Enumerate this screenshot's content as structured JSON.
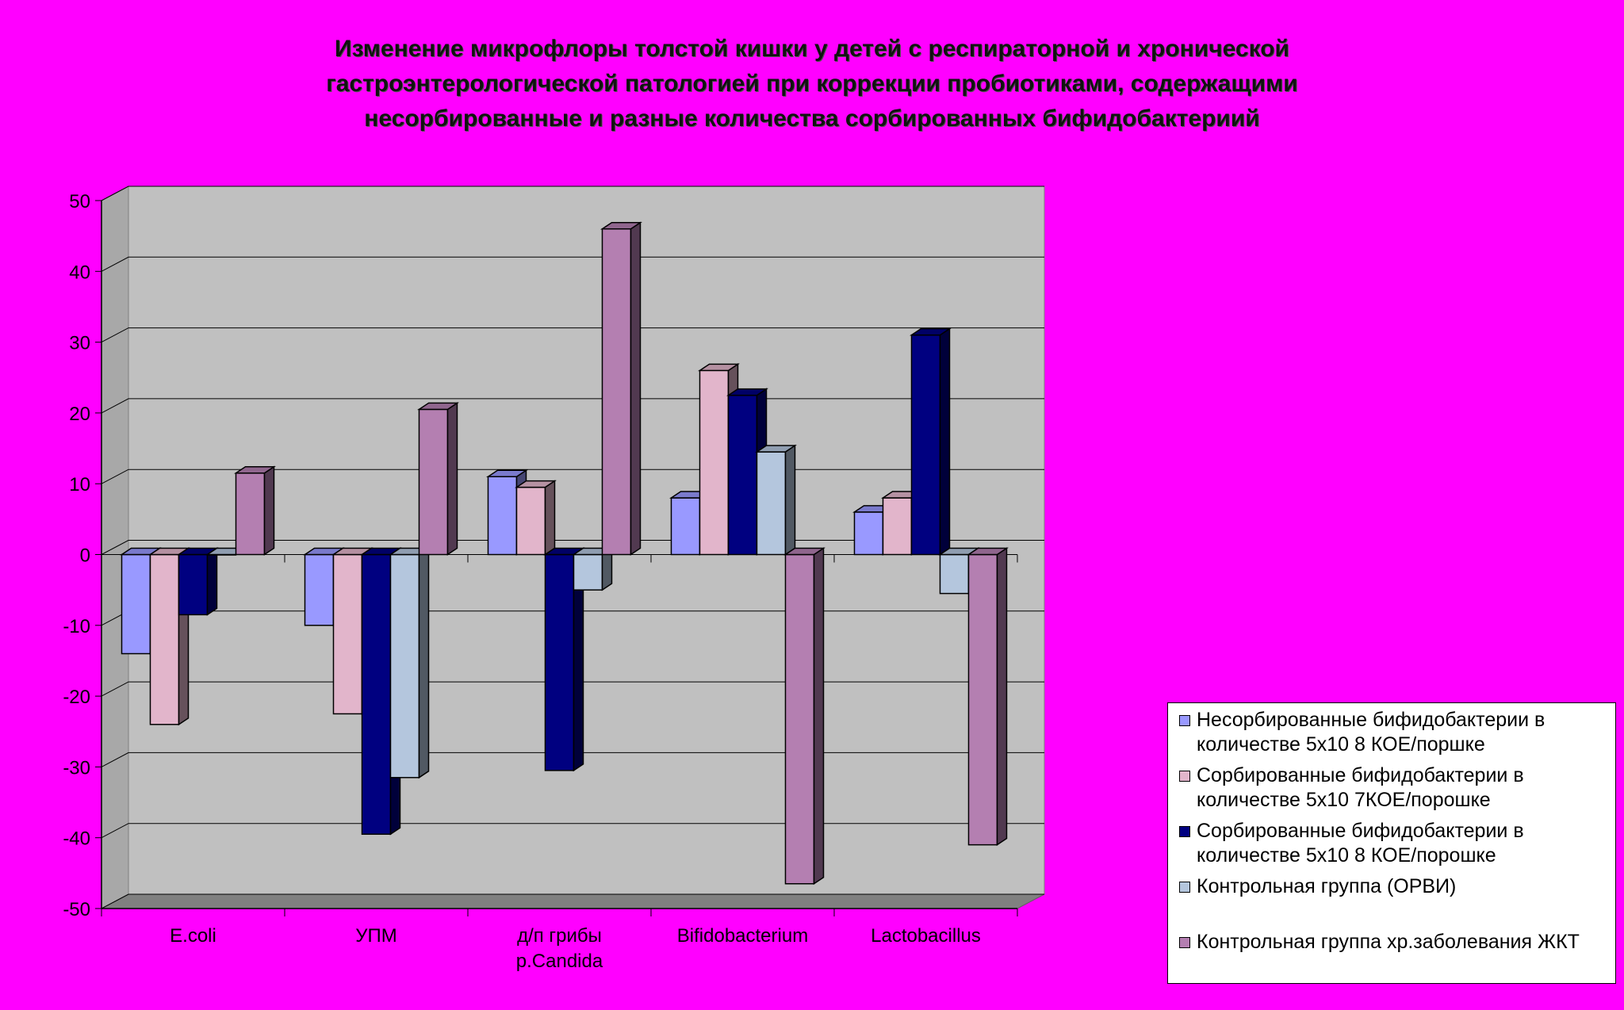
{
  "chart_data": {
    "type": "bar",
    "title_lines": [
      "Изменение микрофлоры толстой кишки у детей с респираторной и хронической",
      "гастроэнтерологической патологией при коррекции пробиотиками, содержащими",
      "несорбированные и разные количества сорбированных бифидобактериий"
    ],
    "categories": [
      [
        "E.coli"
      ],
      [
        "УПМ"
      ],
      [
        "д/п грибы",
        "р.Candida"
      ],
      [
        "Bifidobacterium"
      ],
      [
        "Lactobacillus"
      ]
    ],
    "ylim": [
      -50,
      50
    ],
    "yticks": [
      "50",
      "40",
      "30",
      "20",
      "10",
      "0",
      "-10",
      "-20",
      "-30",
      "-40",
      "-50"
    ],
    "grid": true,
    "legend_position": "bottom-right",
    "series": [
      {
        "name": "Несорбированные бифидобактерии в количестве 5х10 8 КОЕ/поршке",
        "color": "#9999ff",
        "values": [
          -14,
          -10,
          11,
          8,
          6
        ]
      },
      {
        "name": "Сорбированные бифидобактерии в количестве 5х10 7КОЕ/порошке",
        "color": "#e2b5cb",
        "values": [
          -24,
          -22.5,
          9.5,
          26,
          8
        ]
      },
      {
        "name": "Сорбированные бифидобактерии в количестве 5х10 8 КОЕ/порошке",
        "color": "#000080",
        "values": [
          -8.5,
          -39.5,
          -30.5,
          22.5,
          31
        ]
      },
      {
        "name": "Контрольная группа (ОРВИ)",
        "color": "#b4c6dd",
        "values": [
          0,
          -31.5,
          -5,
          14.5,
          -5.5
        ]
      },
      {
        "name": "Контрольная группа хр.заболевания ЖКТ",
        "color": "#b47fb1",
        "values": [
          11.5,
          20.5,
          46,
          -46.5,
          -41
        ]
      }
    ]
  }
}
